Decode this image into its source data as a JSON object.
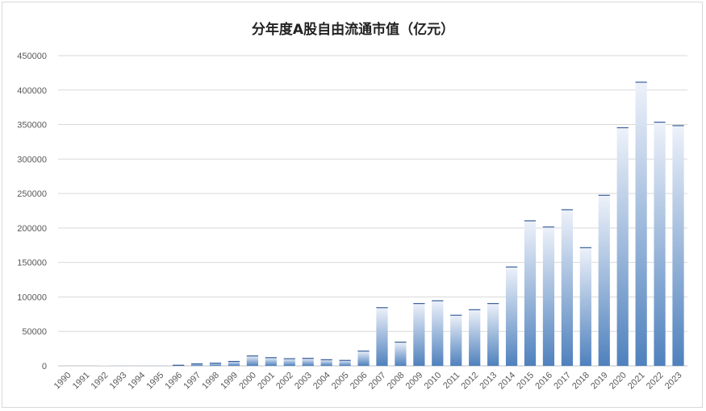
{
  "chart_data": {
    "type": "bar",
    "title": "分年度A股自由流通市值（亿元）",
    "xlabel": "",
    "ylabel": "",
    "ylim": [
      0,
      450000
    ],
    "yticks": [
      "0",
      "50000",
      "100000",
      "150000",
      "200000",
      "250000",
      "300000",
      "350000",
      "400000",
      "450000"
    ],
    "grid": true,
    "categories": [
      "1990",
      "1991",
      "1992",
      "1993",
      "1994",
      "1995",
      "1996",
      "1997",
      "1998",
      "1999",
      "2000",
      "2001",
      "2002",
      "2003",
      "2004",
      "2005",
      "2006",
      "2007",
      "2008",
      "2009",
      "2010",
      "2011",
      "2012",
      "2013",
      "2014",
      "2015",
      "2016",
      "2017",
      "2018",
      "2019",
      "2020",
      "2021",
      "2022",
      "2023"
    ],
    "values": [
      0,
      0,
      200,
      500,
      500,
      500,
      1500,
      3500,
      4500,
      7000,
      15000,
      12500,
      11000,
      11500,
      9500,
      8500,
      22000,
      85000,
      35000,
      91000,
      95000,
      74000,
      82000,
      91000,
      144000,
      211000,
      202000,
      227000,
      172000,
      248000,
      346000,
      412000,
      354000,
      349000
    ],
    "colors": {
      "bar_top": "#eef2fa",
      "bar_bottom": "#4f81bd",
      "bar_cap": "#3a5f9a",
      "grid": "#d9d9d9",
      "axis": "#bfbfbf"
    }
  }
}
